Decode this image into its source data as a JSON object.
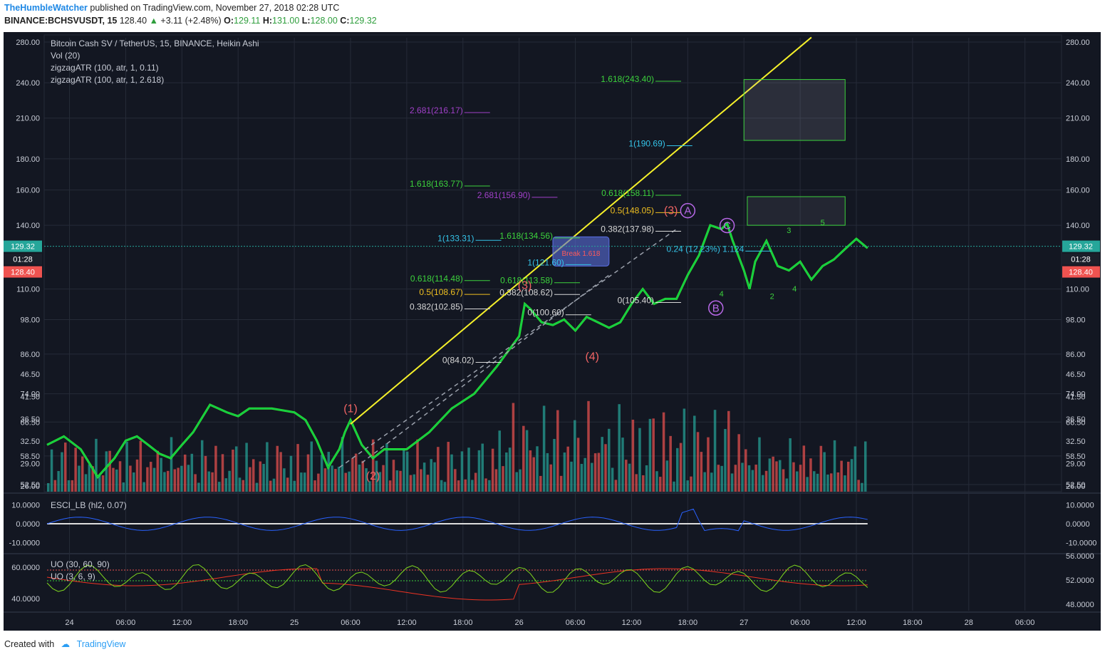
{
  "header": {
    "author": "TheHumbleWatcher",
    "published": "published on TradingView.com, November 27, 2018 02:28 UTC",
    "symbol": "BINANCE:BCHSVUSDT, 15",
    "last": "128.40",
    "change": "+3.11 (+2.48%)",
    "o_label": "O:",
    "o": "129.11",
    "h_label": "H:",
    "h": "131.00",
    "l_label": "L:",
    "l": "128.00",
    "c_label": "C:",
    "c": "129.32"
  },
  "footer": {
    "created": "Created with",
    "brand": "TradingView"
  },
  "colors": {
    "bg": "#131722",
    "grid": "#262b38",
    "text": "#c8ccd6",
    "up": "#26a69a",
    "down": "#ef5350",
    "green_line": "#2ee82e",
    "yellow": "#f5f02a",
    "fib_green": "#3cd23c",
    "fib_cyan": "#34c3e8",
    "fib_purple": "#a040c8",
    "fib_gold": "#f0c020",
    "fib_white": "#d8d8d8",
    "wave": "#f06464",
    "abc": "#b868e8"
  },
  "chart_data": {
    "type": "line",
    "title": "Bitcoin Cash SV / TetherUS, 15, BINANCE, Heikin Ashi",
    "studies": [
      "Vol (20)",
      "zigzagATR (100, atr, 1, 0.11)",
      "zigzagATR (100, atr, 1, 2.618)"
    ],
    "scale": "log",
    "ylim": [
      52.5,
      280
    ],
    "x_ticks": [
      "24",
      "06:00",
      "12:00",
      "18:00",
      "25",
      "06:00",
      "12:00",
      "18:00",
      "26",
      "06:00",
      "12:00",
      "18:00",
      "27",
      "06:00",
      "12:00",
      "18:00",
      "28",
      "06:00"
    ],
    "y_ticks": [
      "280.00",
      "240.00",
      "210.00",
      "180.00",
      "160.00",
      "140.00",
      "110.00",
      "98.00",
      "86.00",
      "74.00",
      "66.50",
      "58.50",
      "52.50"
    ],
    "price_labels": {
      "last_close": "129.32",
      "countdown": "01:28",
      "current": "128.40"
    },
    "price_series": [
      {
        "t": 0,
        "v": 61
      },
      {
        "t": 1.5,
        "v": 63
      },
      {
        "t": 3,
        "v": 60
      },
      {
        "t": 4,
        "v": 56
      },
      {
        "t": 4.5,
        "v": 54
      },
      {
        "t": 6,
        "v": 58
      },
      {
        "t": 7,
        "v": 62
      },
      {
        "t": 8,
        "v": 63
      },
      {
        "t": 9,
        "v": 61
      },
      {
        "t": 10,
        "v": 59
      },
      {
        "t": 11,
        "v": 58
      },
      {
        "t": 12,
        "v": 61
      },
      {
        "t": 13,
        "v": 64
      },
      {
        "t": 14.5,
        "v": 71
      },
      {
        "t": 16,
        "v": 69
      },
      {
        "t": 17,
        "v": 68
      },
      {
        "t": 18,
        "v": 70
      },
      {
        "t": 20,
        "v": 70
      },
      {
        "t": 22,
        "v": 69
      },
      {
        "t": 23,
        "v": 67
      },
      {
        "t": 24,
        "v": 62
      },
      {
        "t": 25,
        "v": 56
      },
      {
        "t": 26,
        "v": 60
      },
      {
        "t": 26.5,
        "v": 64
      },
      {
        "t": 27,
        "v": 67
      },
      {
        "t": 28,
        "v": 61
      },
      {
        "t": 29,
        "v": 58
      },
      {
        "t": 30,
        "v": 60
      },
      {
        "t": 32,
        "v": 60
      },
      {
        "t": 34,
        "v": 64
      },
      {
        "t": 36,
        "v": 70
      },
      {
        "t": 38,
        "v": 74
      },
      {
        "t": 40,
        "v": 82
      },
      {
        "t": 42,
        "v": 92
      },
      {
        "t": 42.5,
        "v": 104
      },
      {
        "t": 43,
        "v": 102
      },
      {
        "t": 44,
        "v": 97
      },
      {
        "t": 45,
        "v": 96
      },
      {
        "t": 46,
        "v": 98
      },
      {
        "t": 47,
        "v": 94
      },
      {
        "t": 48,
        "v": 99
      },
      {
        "t": 49,
        "v": 97
      },
      {
        "t": 50,
        "v": 95
      },
      {
        "t": 51,
        "v": 97
      },
      {
        "t": 52,
        "v": 104
      },
      {
        "t": 53,
        "v": 110
      },
      {
        "t": 54,
        "v": 104
      },
      {
        "t": 55,
        "v": 106
      },
      {
        "t": 56,
        "v": 106
      },
      {
        "t": 57,
        "v": 116
      },
      {
        "t": 58,
        "v": 125
      },
      {
        "t": 59,
        "v": 140
      },
      {
        "t": 60,
        "v": 138
      },
      {
        "t": 60.5,
        "v": 141
      },
      {
        "t": 61,
        "v": 132
      },
      {
        "t": 62,
        "v": 118
      },
      {
        "t": 62.5,
        "v": 110
      },
      {
        "t": 63,
        "v": 122
      },
      {
        "t": 64,
        "v": 132
      },
      {
        "t": 65,
        "v": 120
      },
      {
        "t": 66,
        "v": 118
      },
      {
        "t": 67,
        "v": 122
      },
      {
        "t": 68,
        "v": 114
      },
      {
        "t": 69,
        "v": 120
      },
      {
        "t": 70,
        "v": 123
      },
      {
        "t": 71,
        "v": 128
      },
      {
        "t": 72,
        "v": 133
      },
      {
        "t": 73,
        "v": 128.4
      }
    ],
    "volume_ticks": [
      "46.50",
      "41.50",
      "36.50",
      "32.50",
      "29.00",
      "26.00"
    ],
    "esci": {
      "label": "ESCI_LB (hl2, 0.07)",
      "ticks": [
        "10.0000",
        "0.0000",
        "-10.0000"
      ],
      "ylim": [
        -12,
        12
      ]
    },
    "uo": {
      "labels": [
        "UO (30, 60, 90)",
        "UO (3, 6, 9)"
      ],
      "left_ticks": [
        "60.0000",
        "40.0000"
      ],
      "right_ticks": [
        "56.0000",
        "52.0000",
        "48.0000"
      ]
    },
    "annotations": {
      "fib": [
        {
          "text": "1.618(243.40)",
          "color": "fib_green",
          "v": 243.4,
          "t": 54
        },
        {
          "text": "2.681(216.17)",
          "color": "fib_purple",
          "v": 216.17,
          "t": 37
        },
        {
          "text": "1(190.69)",
          "color": "fib_cyan",
          "v": 190.69,
          "t": 55
        },
        {
          "text": "1.618(163.77)",
          "color": "fib_green",
          "v": 163.77,
          "t": 37
        },
        {
          "text": "2.681(156.90)",
          "color": "fib_purple",
          "v": 156.9,
          "t": 43
        },
        {
          "text": "0.618(158.11)",
          "color": "fib_green",
          "v": 158.11,
          "t": 54
        },
        {
          "text": "0.5(148.05)",
          "color": "fib_gold",
          "v": 148.05,
          "t": 54
        },
        {
          "text": "0.382(137.98)",
          "color": "fib_white",
          "v": 137.98,
          "t": 54
        },
        {
          "text": "1(133.31)",
          "color": "fib_cyan",
          "v": 133.31,
          "t": 38
        },
        {
          "text": "1.618(134.56)",
          "color": "fib_green",
          "v": 134.56,
          "t": 45
        },
        {
          "text": "1(121.60)",
          "color": "fib_cyan",
          "v": 121.6,
          "t": 46
        },
        {
          "text": "0.618(114.48)",
          "color": "fib_green",
          "v": 114.48,
          "t": 37
        },
        {
          "text": "0.618(113.58)",
          "color": "fib_green",
          "v": 113.58,
          "t": 45
        },
        {
          "text": "0.5(108.67)",
          "color": "fib_gold",
          "v": 108.67,
          "t": 37
        },
        {
          "text": "0.382(108.62)",
          "color": "fib_white",
          "v": 108.62,
          "t": 45
        },
        {
          "text": "0.382(102.85)",
          "color": "fib_white",
          "v": 102.85,
          "t": 37
        },
        {
          "text": "0(100.60)",
          "color": "fib_white",
          "v": 100.6,
          "t": 46
        },
        {
          "text": "0(105.40)",
          "color": "fib_white",
          "v": 105.4,
          "t": 54
        },
        {
          "text": "0(84.02)",
          "color": "fib_white",
          "v": 84.02,
          "t": 38
        },
        {
          "text": "0.24 (12.23%) 1.124",
          "color": "fib_cyan",
          "v": 128,
          "t": 62
        }
      ],
      "waves": [
        {
          "text": "(1)",
          "v": 69,
          "t": 27
        },
        {
          "text": "(2)",
          "v": 53.5,
          "t": 29
        },
        {
          "text": "(3)",
          "v": 110,
          "t": 42.5
        },
        {
          "text": "(4)",
          "v": 84,
          "t": 48.5
        },
        {
          "text": "(3)",
          "v": 146,
          "t": 55.5
        }
      ],
      "abc": [
        {
          "text": "A",
          "v": 146,
          "t": 57
        },
        {
          "text": "B",
          "v": 101,
          "t": 59.5
        },
        {
          "text": "C",
          "v": 138,
          "t": 60.5
        }
      ],
      "minor": [
        {
          "text": "3",
          "v": 136,
          "t": 66
        },
        {
          "text": "5",
          "v": 140,
          "t": 69
        },
        {
          "text": "2",
          "v": 106,
          "t": 64.5
        },
        {
          "text": "4",
          "v": 109,
          "t": 66.5
        },
        {
          "text": "4",
          "v": 107,
          "t": 60
        }
      ],
      "box_label": "Break 1.618"
    }
  }
}
